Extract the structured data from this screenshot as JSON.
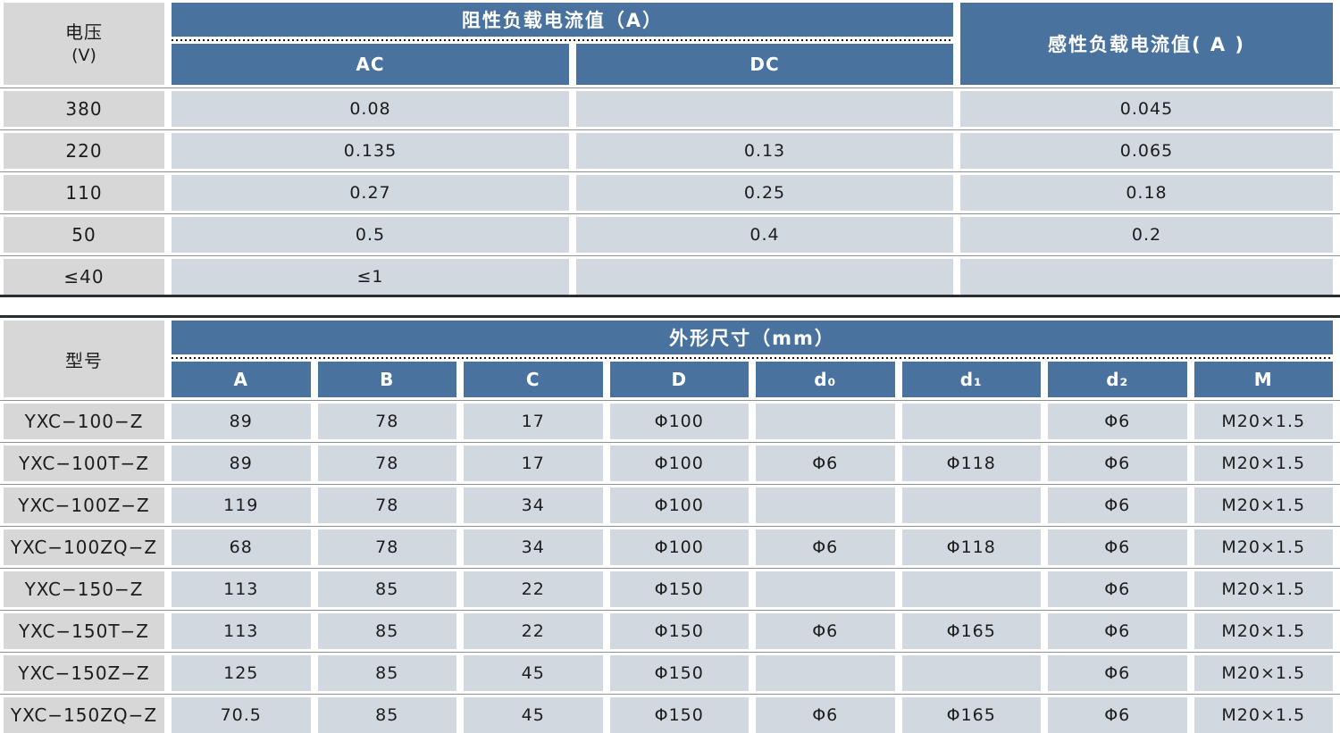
{
  "colors": {
    "header_blue": "#49729e",
    "label_gray": "#d7d7d7",
    "data_cell_blue_gray": "#d2d8df",
    "separator_line": "#8e9092",
    "thick_rule": "#2b2e30"
  },
  "table1": {
    "corner_line1": "电压",
    "corner_line2": "(V)",
    "resistive_header": "阻性负载电流值（A）",
    "ac_label": "AC",
    "dc_label": "DC",
    "inductive_header": "感性负载电流值( A )",
    "rows": [
      {
        "voltage": "380",
        "ac": "0.08",
        "dc": "",
        "inductive": "0.045"
      },
      {
        "voltage": "220",
        "ac": "0.135",
        "dc": "0.13",
        "inductive": "0.065"
      },
      {
        "voltage": "110",
        "ac": "0.27",
        "dc": "0.25",
        "inductive": "0.18"
      },
      {
        "voltage": "50",
        "ac": "0.5",
        "dc": "0.4",
        "inductive": "0.2"
      },
      {
        "voltage": "≤40",
        "ac": "≤1",
        "dc": "",
        "inductive": ""
      }
    ]
  },
  "table2": {
    "corner": "型号",
    "dims_header": "外形尺寸（mm）",
    "columns": [
      "A",
      "B",
      "C",
      "D",
      "d₀",
      "d₁",
      "d₂",
      "M"
    ],
    "columns_keys": [
      "A",
      "B",
      "C",
      "D",
      "d0",
      "d1",
      "d2",
      "M"
    ],
    "rows": [
      {
        "model": "YXC−100−Z",
        "values": [
          "89",
          "78",
          "17",
          "Φ100",
          "",
          "",
          "Φ6",
          "M20×1.5"
        ]
      },
      {
        "model": "YXC−100T−Z",
        "values": [
          "89",
          "78",
          "17",
          "Φ100",
          "Φ6",
          "Φ118",
          "Φ6",
          "M20×1.5"
        ]
      },
      {
        "model": "YXC−100Z−Z",
        "values": [
          "119",
          "78",
          "34",
          "Φ100",
          "",
          "",
          "Φ6",
          "M20×1.5"
        ]
      },
      {
        "model": "YXC−100ZQ−Z",
        "values": [
          "68",
          "78",
          "34",
          "Φ100",
          "Φ6",
          "Φ118",
          "Φ6",
          "M20×1.5"
        ]
      },
      {
        "model": "YXC−150−Z",
        "values": [
          "113",
          "85",
          "22",
          "Φ150",
          "",
          "",
          "Φ6",
          "M20×1.5"
        ]
      },
      {
        "model": "YXC−150T−Z",
        "values": [
          "113",
          "85",
          "22",
          "Φ150",
          "Φ6",
          "Φ165",
          "Φ6",
          "M20×1.5"
        ]
      },
      {
        "model": "YXC−150Z−Z",
        "values": [
          "125",
          "85",
          "45",
          "Φ150",
          "",
          "",
          "Φ6",
          "M20×1.5"
        ]
      },
      {
        "model": "YXC−150ZQ−Z",
        "values": [
          "70.5",
          "85",
          "45",
          "Φ150",
          "Φ6",
          "Φ165",
          "Φ6",
          "M20×1.5"
        ]
      }
    ]
  }
}
